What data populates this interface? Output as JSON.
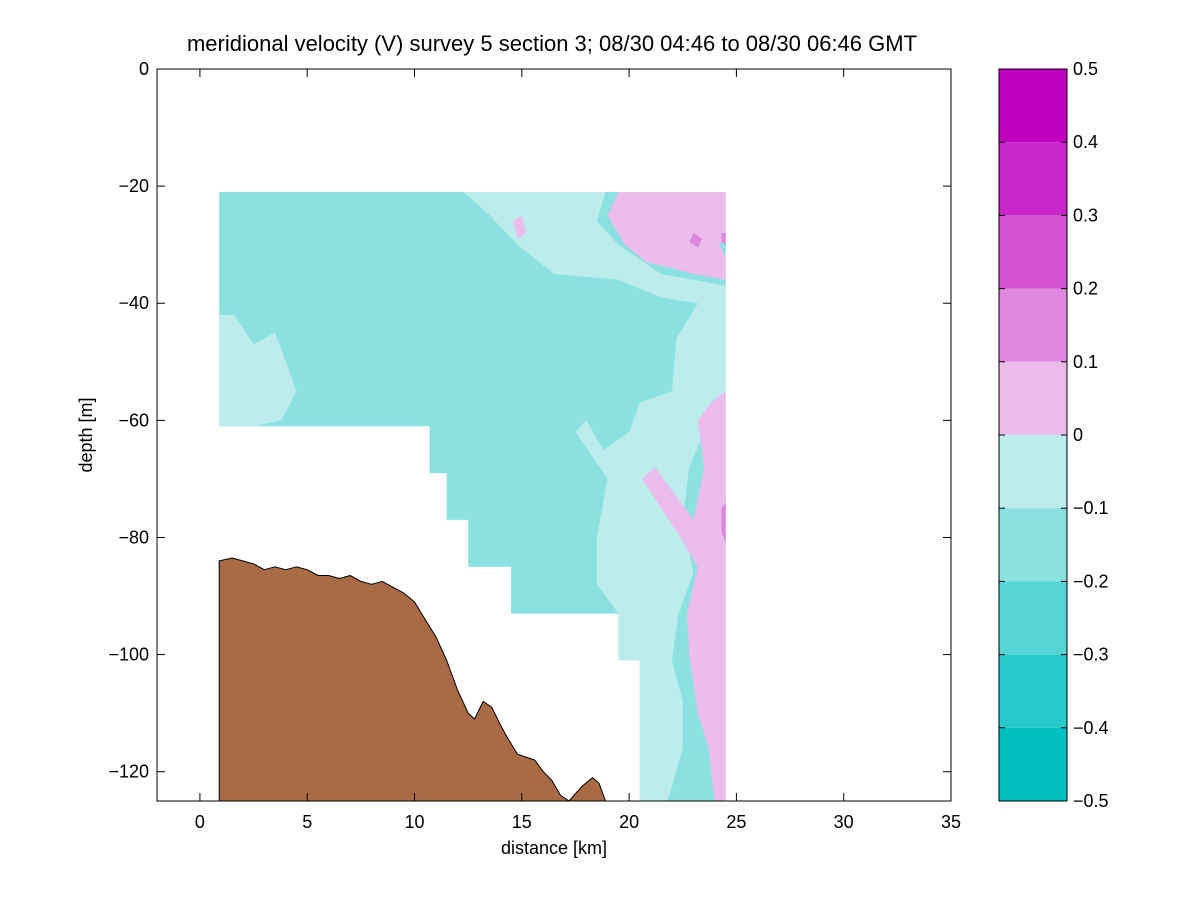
{
  "chart_data": {
    "type": "contour",
    "title": "meridional velocity (V) survey 5 section 3; 08/30 04:46 to 08/30 06:46 GMT",
    "xlabel": "distance [km]",
    "ylabel": "depth [m]",
    "xlim": [
      -2,
      35
    ],
    "ylim": [
      -125,
      0
    ],
    "xticks": [
      0,
      5,
      10,
      15,
      20,
      25,
      30,
      35
    ],
    "yticks": [
      0,
      -20,
      -40,
      -60,
      -80,
      -100,
      -120
    ],
    "grid": false,
    "colorbar": {
      "range": [
        -0.5,
        0.5
      ],
      "ticks": [
        0.5,
        0.4,
        0.3,
        0.2,
        0.1,
        0,
        -0.1,
        -0.2,
        -0.3,
        -0.4,
        -0.5
      ],
      "levels": [
        {
          "from": 0.4,
          "to": 0.5,
          "color": "#bf00bf"
        },
        {
          "from": 0.3,
          "to": 0.4,
          "color": "#c926c9"
        },
        {
          "from": 0.2,
          "to": 0.3,
          "color": "#d452d4"
        },
        {
          "from": 0.1,
          "to": 0.2,
          "color": "#df86df"
        },
        {
          "from": 0.0,
          "to": 0.1,
          "color": "#ecbcec"
        },
        {
          "from": -0.1,
          "to": 0.0,
          "color": "#bdecec"
        },
        {
          "from": -0.2,
          "to": -0.1,
          "color": "#8be0e0"
        },
        {
          "from": -0.3,
          "to": -0.2,
          "color": "#55d5d5"
        },
        {
          "from": -0.4,
          "to": -0.3,
          "color": "#26c9c9"
        },
        {
          "from": -0.5,
          "to": -0.4,
          "color": "#00bfbf"
        }
      ]
    },
    "data_envelope": [
      [
        0.9,
        -21
      ],
      [
        24.5,
        -21
      ],
      [
        24.5,
        -125
      ],
      [
        20.5,
        -125
      ],
      [
        20.5,
        -101
      ],
      [
        19.5,
        -101
      ],
      [
        19.5,
        -93
      ],
      [
        14.5,
        -93
      ],
      [
        14.5,
        -85
      ],
      [
        12.5,
        -85
      ],
      [
        12.5,
        -77
      ],
      [
        11.5,
        -77
      ],
      [
        11.5,
        -69
      ],
      [
        10.7,
        -69
      ],
      [
        10.7,
        -61
      ],
      [
        0.9,
        -61
      ]
    ],
    "regions": [
      {
        "level": -0.1,
        "polygon": [
          [
            0.9,
            -42
          ],
          [
            1.6,
            -42
          ],
          [
            2.5,
            -47
          ],
          [
            3.5,
            -45
          ],
          [
            4.0,
            -50
          ],
          [
            4.5,
            -55
          ],
          [
            3.8,
            -60
          ],
          [
            2.5,
            -61
          ],
          [
            0.9,
            -61
          ]
        ]
      },
      {
        "level": -0.2,
        "polygon": [
          [
            8.4,
            -24
          ],
          [
            9.5,
            -22
          ],
          [
            11,
            -21
          ],
          [
            12.5,
            -25
          ],
          [
            13.0,
            -35
          ],
          [
            13.5,
            -45
          ],
          [
            15.0,
            -52
          ],
          [
            15.5,
            -60
          ],
          [
            14.0,
            -58
          ],
          [
            12.5,
            -51
          ],
          [
            11,
            -53
          ],
          [
            10,
            -58
          ],
          [
            8.8,
            -55
          ],
          [
            8.0,
            -44
          ],
          [
            6.5,
            -42
          ],
          [
            6.8,
            -35
          ],
          [
            7.8,
            -30
          ]
        ]
      },
      {
        "level": -0.2,
        "polygon": [
          [
            11.5,
            -44
          ],
          [
            12.5,
            -39
          ],
          [
            14.5,
            -37
          ],
          [
            15.8,
            -40
          ],
          [
            16.0,
            -48
          ],
          [
            15.0,
            -50
          ],
          [
            13.2,
            -50
          ],
          [
            12.0,
            -48
          ]
        ]
      },
      {
        "level": -0.2,
        "polygon": [
          [
            17.5,
            -46
          ],
          [
            18.8,
            -49
          ],
          [
            18.5,
            -52
          ],
          [
            17.5,
            -50
          ]
        ]
      },
      {
        "level": -0.2,
        "polygon": [
          [
            19.8,
            -41
          ],
          [
            21.0,
            -44
          ],
          [
            20.9,
            -50
          ],
          [
            19.9,
            -47
          ]
        ]
      },
      {
        "level": -0.2,
        "polygon": [
          [
            10.7,
            -61
          ],
          [
            11.5,
            -61
          ],
          [
            11.5,
            -69
          ],
          [
            10.7,
            -69
          ]
        ]
      },
      {
        "level": -0.1,
        "polygon": [
          [
            12.3,
            -21
          ],
          [
            18.9,
            -21
          ],
          [
            18.5,
            -26
          ],
          [
            19.5,
            -30
          ],
          [
            21.5,
            -35
          ],
          [
            24.5,
            -37
          ],
          [
            24.5,
            -55
          ],
          [
            23.5,
            -62
          ],
          [
            22.8,
            -68
          ],
          [
            22.5,
            -77
          ],
          [
            23.0,
            -86
          ],
          [
            22.3,
            -93
          ],
          [
            22.0,
            -101
          ],
          [
            22.5,
            -108
          ],
          [
            22.5,
            -116
          ],
          [
            21.8,
            -125
          ],
          [
            20.5,
            -125
          ],
          [
            20.5,
            -101
          ],
          [
            19.5,
            -101
          ],
          [
            19.5,
            -93
          ],
          [
            18.5,
            -88
          ],
          [
            18.5,
            -80
          ],
          [
            19.0,
            -70
          ],
          [
            17.5,
            -62
          ],
          [
            18.0,
            -60
          ],
          [
            18.8,
            -65
          ],
          [
            20.0,
            -62
          ],
          [
            20.5,
            -57
          ],
          [
            22.0,
            -55
          ],
          [
            22.2,
            -46
          ],
          [
            23.2,
            -40
          ],
          [
            21.5,
            -39
          ],
          [
            19.5,
            -36
          ],
          [
            16.5,
            -35
          ],
          [
            14.8,
            -30
          ],
          [
            13.5,
            -25
          ]
        ]
      },
      {
        "level": 0.0,
        "polygon": [
          [
            19.5,
            -21
          ],
          [
            24.5,
            -21
          ],
          [
            24.5,
            -29
          ],
          [
            24.2,
            -30
          ],
          [
            24.5,
            -32
          ],
          [
            24.5,
            -36
          ],
          [
            23.0,
            -35
          ],
          [
            22.0,
            -34
          ],
          [
            20.8,
            -33
          ],
          [
            19.8,
            -30
          ],
          [
            19.0,
            -25
          ]
        ]
      },
      {
        "level": 0.0,
        "polygon": [
          [
            14.6,
            -26
          ],
          [
            15.0,
            -25
          ],
          [
            15.2,
            -28
          ],
          [
            14.8,
            -29
          ]
        ]
      },
      {
        "level": 0.0,
        "polygon": [
          [
            24.5,
            -55
          ],
          [
            24.5,
            -125
          ],
          [
            24.0,
            -125
          ],
          [
            23.7,
            -116
          ],
          [
            23.2,
            -110
          ],
          [
            22.8,
            -100
          ],
          [
            22.7,
            -93
          ],
          [
            23.2,
            -85
          ],
          [
            22.4,
            -80
          ],
          [
            21.5,
            -75
          ],
          [
            20.6,
            -70
          ],
          [
            21.2,
            -68
          ],
          [
            22.0,
            -72
          ],
          [
            23.0,
            -77
          ],
          [
            23.5,
            -68
          ],
          [
            23.2,
            -60
          ],
          [
            23.8,
            -57
          ]
        ]
      },
      {
        "level": 0.1,
        "polygon": [
          [
            23.0,
            -28
          ],
          [
            23.4,
            -29
          ],
          [
            23.2,
            -30.5
          ],
          [
            22.8,
            -29.5
          ]
        ]
      },
      {
        "level": 0.1,
        "polygon": [
          [
            24.3,
            -28
          ],
          [
            24.5,
            -28
          ],
          [
            24.5,
            -30
          ],
          [
            24.3,
            -29.5
          ]
        ]
      },
      {
        "level": 0.1,
        "polygon": [
          [
            24.5,
            -74
          ],
          [
            24.5,
            -81
          ],
          [
            24.3,
            -79
          ],
          [
            24.3,
            -75
          ]
        ]
      }
    ],
    "bathymetry": {
      "color": "#a86b46",
      "points": [
        [
          0.9,
          -84
        ],
        [
          1.5,
          -83.5
        ],
        [
          2,
          -84
        ],
        [
          2.5,
          -84.5
        ],
        [
          3,
          -85.5
        ],
        [
          3.5,
          -85
        ],
        [
          4,
          -85.5
        ],
        [
          4.5,
          -85
        ],
        [
          5,
          -85.5
        ],
        [
          5.5,
          -86.5
        ],
        [
          6,
          -86.5
        ],
        [
          6.5,
          -87
        ],
        [
          7,
          -86.5
        ],
        [
          7.5,
          -87.5
        ],
        [
          8,
          -88
        ],
        [
          8.5,
          -87.5
        ],
        [
          9,
          -88.5
        ],
        [
          9.5,
          -89.5
        ],
        [
          10,
          -91
        ],
        [
          10.5,
          -94
        ],
        [
          11,
          -97
        ],
        [
          11.5,
          -101
        ],
        [
          12,
          -106
        ],
        [
          12.5,
          -110
        ],
        [
          12.8,
          -111
        ],
        [
          13.2,
          -108
        ],
        [
          13.6,
          -109
        ],
        [
          14,
          -112
        ],
        [
          14.3,
          -114
        ],
        [
          14.8,
          -117
        ],
        [
          15.2,
          -117.5
        ],
        [
          15.6,
          -118
        ],
        [
          16,
          -120
        ],
        [
          16.4,
          -121.5
        ],
        [
          16.8,
          -124
        ],
        [
          17.2,
          -125
        ],
        [
          17.8,
          -122.5
        ],
        [
          18.3,
          -121
        ],
        [
          18.6,
          -122
        ],
        [
          18.9,
          -125
        ]
      ]
    }
  }
}
